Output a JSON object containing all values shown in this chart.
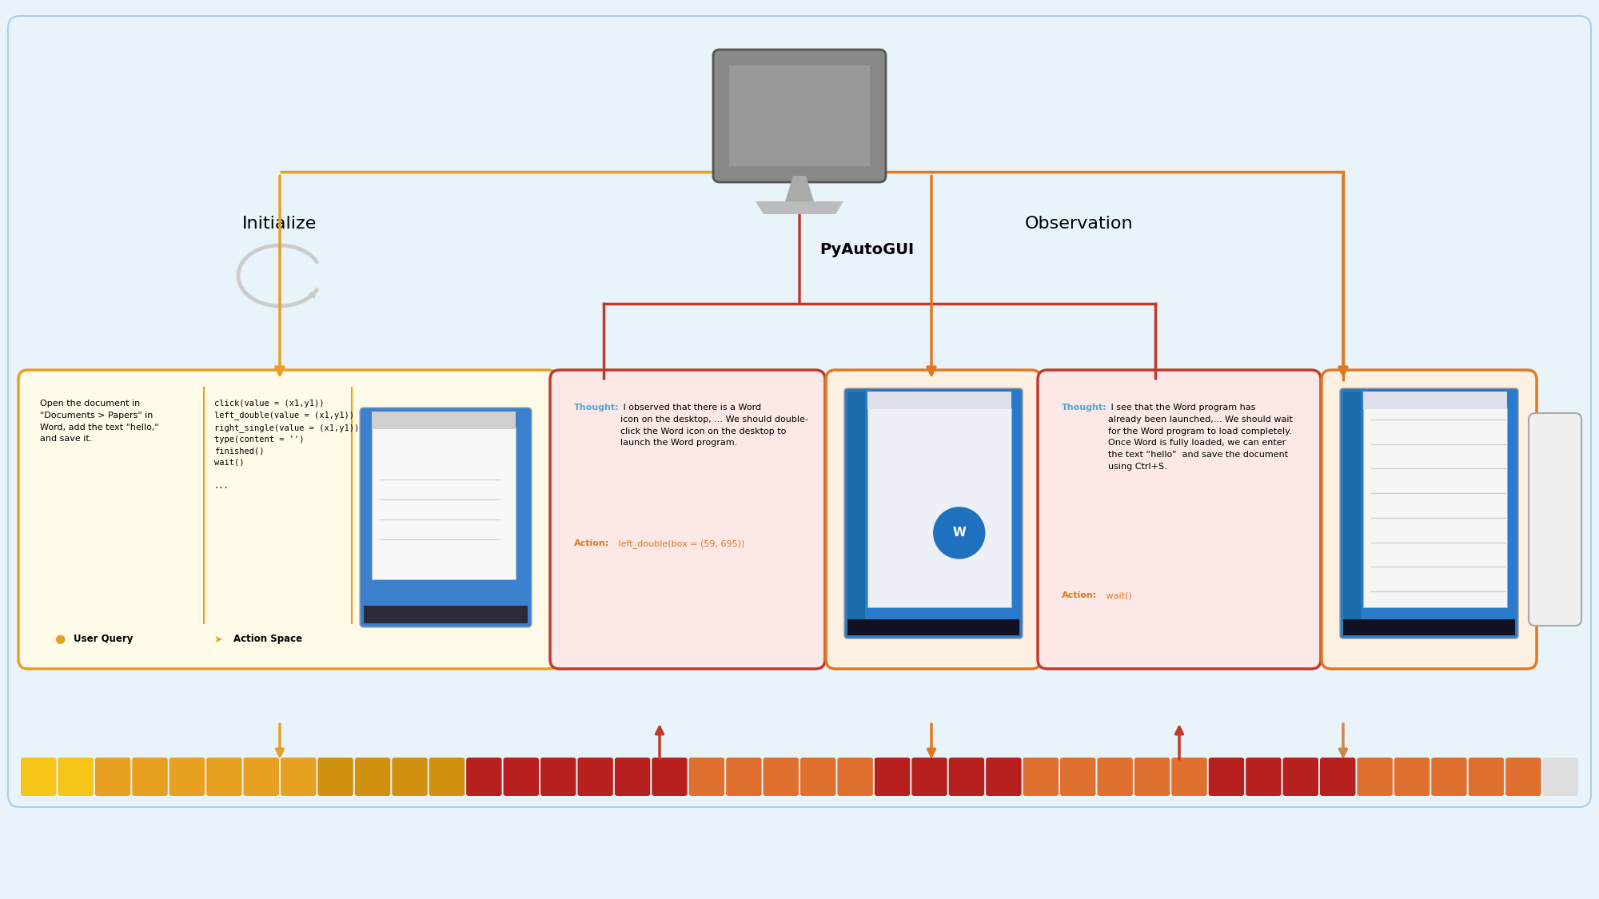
{
  "bg_color": "#e8f3fa",
  "outer_border_color": "#aacfea",
  "yellow_border": "#e8a020",
  "yellow_fill": "#fffbe8",
  "yellow_fill2": "#fff5cc",
  "red_border": "#c0392b",
  "red_fill": "#fce8e6",
  "orange_border": "#e07820",
  "orange_fill": "#fdf0e0",
  "gray_border": "#aaaaaa",
  "gray_fill": "#f0f0f0",
  "arrow_yellow": "#e8a020",
  "arrow_red": "#c0392b",
  "arrow_orange": "#e07820",
  "thought_color": "#4ea8d8",
  "action_color": "#e07820",
  "refresh_color": "#cccccc",
  "title_initialize": "Initialize",
  "title_observation": "Observation",
  "title_pyautogui": "PyAutoGUI",
  "user_query_text": "Open the document in\n\"Documents > Papers\" in\nWord, add the text \"hello,\"\nand save it.",
  "action_space_text": "click(value = (x1,y1))\nleft_double(value = (x1,y1))\nright_single(value = (x1,y1))\ntype(content = '')\nfinished()\nwait()\n\n...",
  "card1_thought_label": "Thought:",
  "card1_thought_rest": " I observed that there is a Word\nicon on the desktop, ... We should double-\nclick the Word icon on the desktop to\nlaunch the Word program.",
  "card1_action_label": "Action:",
  "card1_action_rest": " left_double(box = (59, 695))",
  "card2_thought_label": "Thought:",
  "card2_thought_rest": " I see that the Word program has\nalready been launched,... We should wait\nfor the Word program to load completely.\nOnce Word is fully loaded, we can enter\nthe text “hello”  and save the document\nusing Ctrl+S.",
  "card2_action_label": "Action:",
  "card2_action_rest": " wait()",
  "bottom_colors": [
    "#f5c518",
    "#f5c518",
    "#e8a020",
    "#e8a020",
    "#e8a020",
    "#e8a020",
    "#e8a020",
    "#e8a020",
    "#d09010",
    "#d09010",
    "#d09010",
    "#d09010",
    "#b82020",
    "#b82020",
    "#b82020",
    "#b82020",
    "#b82020",
    "#b82020",
    "#e07030",
    "#e07030",
    "#e07030",
    "#e07030",
    "#e07030",
    "#b82020",
    "#b82020",
    "#b82020",
    "#b82020",
    "#e07030",
    "#e07030",
    "#e07030",
    "#e07030",
    "#e07030",
    "#b82020",
    "#b82020",
    "#b82020",
    "#b82020",
    "#e07030",
    "#e07030",
    "#e07030",
    "#e07030",
    "#e07030",
    "#dddddd"
  ]
}
